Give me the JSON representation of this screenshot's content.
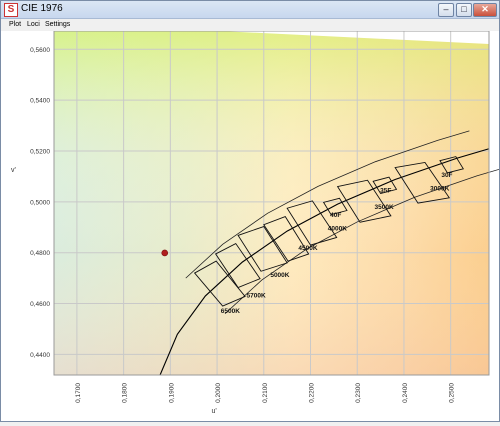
{
  "window": {
    "title": "CIE 1976",
    "app_icon_glyph": "S",
    "controls": {
      "minimize": "–",
      "maximize": "□",
      "close": "✕"
    }
  },
  "menu": {
    "items": [
      "Plot",
      "Loci",
      "Settings"
    ]
  },
  "chart_data": {
    "type": "scatter",
    "title": "",
    "xlabel": "u'",
    "ylabel": "v'",
    "xlim": [
      0.1651,
      0.2582
    ],
    "ylim": [
      0.4319,
      0.5672
    ],
    "x_ticks": [
      "0,1700",
      "0,1800",
      "0,1900",
      "0,2000",
      "0,2100",
      "0,2200",
      "0,2300",
      "0,2400",
      "0,2500"
    ],
    "y_ticks": [
      "0,4400",
      "0,4600",
      "0,4800",
      "0,5000",
      "0,5200",
      "0,5400",
      "0,5600"
    ],
    "grid": true,
    "points": [
      {
        "x": 0.1888,
        "y": 0.4799,
        "color": "#b01e1e"
      }
    ],
    "planckian_locus": [
      [
        0.1878,
        0.4319
      ],
      [
        0.1915,
        0.4479
      ],
      [
        0.1975,
        0.463
      ],
      [
        0.2054,
        0.4763
      ],
      [
        0.215,
        0.4885
      ],
      [
        0.2258,
        0.4991
      ],
      [
        0.2381,
        0.5088
      ],
      [
        0.2514,
        0.5172
      ],
      [
        0.2582,
        0.5209
      ]
    ],
    "tolerance_quads": [
      {
        "label": "6500K",
        "corners": [
          [
            0.1952,
            0.472
          ],
          [
            0.2012,
            0.459
          ],
          [
            0.206,
            0.4628
          ],
          [
            0.1998,
            0.4767
          ]
        ]
      },
      {
        "label": "5700K",
        "corners": [
          [
            0.1997,
            0.4795
          ],
          [
            0.2045,
            0.4663
          ],
          [
            0.2092,
            0.4698
          ],
          [
            0.204,
            0.4836
          ]
        ]
      },
      {
        "label": "5000K",
        "corners": [
          [
            0.2045,
            0.4868
          ],
          [
            0.2094,
            0.4727
          ],
          [
            0.215,
            0.476
          ],
          [
            0.21,
            0.4903
          ]
        ]
      },
      {
        "label": "4500K",
        "corners": [
          [
            0.21,
            0.491
          ],
          [
            0.2152,
            0.4767
          ],
          [
            0.2196,
            0.4795
          ],
          [
            0.2146,
            0.4942
          ]
        ]
      },
      {
        "label": "4000K",
        "corners": [
          [
            0.215,
            0.4975
          ],
          [
            0.22,
            0.483
          ],
          [
            0.2256,
            0.486
          ],
          [
            0.2204,
            0.5004
          ]
        ]
      },
      {
        "label": "3500K",
        "corners": [
          [
            0.2258,
            0.506
          ],
          [
            0.2306,
            0.492
          ],
          [
            0.2372,
            0.4945
          ],
          [
            0.2322,
            0.5085
          ]
        ]
      },
      {
        "label": "3000K",
        "corners": [
          [
            0.2381,
            0.5135
          ],
          [
            0.243,
            0.4995
          ],
          [
            0.2497,
            0.5016
          ],
          [
            0.2445,
            0.5155
          ]
        ]
      },
      {
        "label": "40F",
        "corners": [
          [
            0.2228,
            0.4998
          ],
          [
            0.2244,
            0.495
          ],
          [
            0.2278,
            0.4966
          ],
          [
            0.2262,
            0.5014
          ]
        ]
      },
      {
        "label": "35F",
        "corners": [
          [
            0.2334,
            0.5081
          ],
          [
            0.235,
            0.5033
          ],
          [
            0.2384,
            0.5049
          ],
          [
            0.2368,
            0.5097
          ]
        ]
      },
      {
        "label": "30F",
        "corners": [
          [
            0.2477,
            0.5162
          ],
          [
            0.2493,
            0.5114
          ],
          [
            0.2527,
            0.513
          ],
          [
            0.2511,
            0.5178
          ]
        ]
      }
    ],
    "annotations": [
      {
        "text": "6500K",
        "x": 0.2008,
        "y": 0.4562
      },
      {
        "text": "5700K",
        "x": 0.2063,
        "y": 0.4623
      },
      {
        "text": "5000K",
        "x": 0.2114,
        "y": 0.4704
      },
      {
        "text": "4500K",
        "x": 0.2174,
        "y": 0.481
      },
      {
        "text": "4000K",
        "x": 0.2237,
        "y": 0.4888
      },
      {
        "text": "3500K",
        "x": 0.2337,
        "y": 0.4971
      },
      {
        "text": "3000K",
        "x": 0.2456,
        "y": 0.5044
      },
      {
        "text": "40F",
        "x": 0.2242,
        "y": 0.4941
      },
      {
        "text": "35F",
        "x": 0.2349,
        "y": 0.5036
      },
      {
        "text": "30F",
        "x": 0.248,
        "y": 0.5098
      }
    ]
  }
}
